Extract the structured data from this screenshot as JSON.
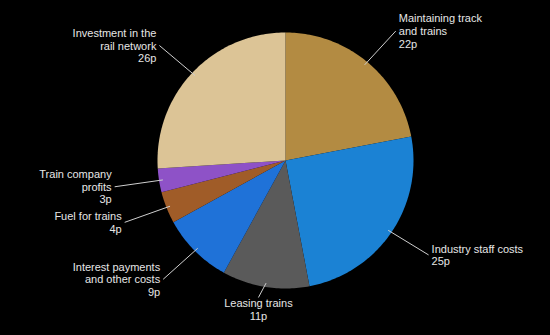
{
  "chart_data": {
    "type": "pie",
    "categories": [
      "Maintaining track and trains",
      "Industry staff costs",
      "Leasing trains",
      "Interest payments and other costs",
      "Fuel for trains",
      "Train company profits",
      "Investment in the rail network"
    ],
    "values": [
      22,
      25,
      11,
      9,
      4,
      3,
      26
    ],
    "value_labels": [
      "22p",
      "25p",
      "11p",
      "9p",
      "4p",
      "3p",
      "26p"
    ],
    "colors": [
      "#b38b42",
      "#1b82d4",
      "#5a5a5a",
      "#1f72d8",
      "#a05c28",
      "#8e52c7",
      "#dcc496"
    ],
    "data_labels": true
  }
}
